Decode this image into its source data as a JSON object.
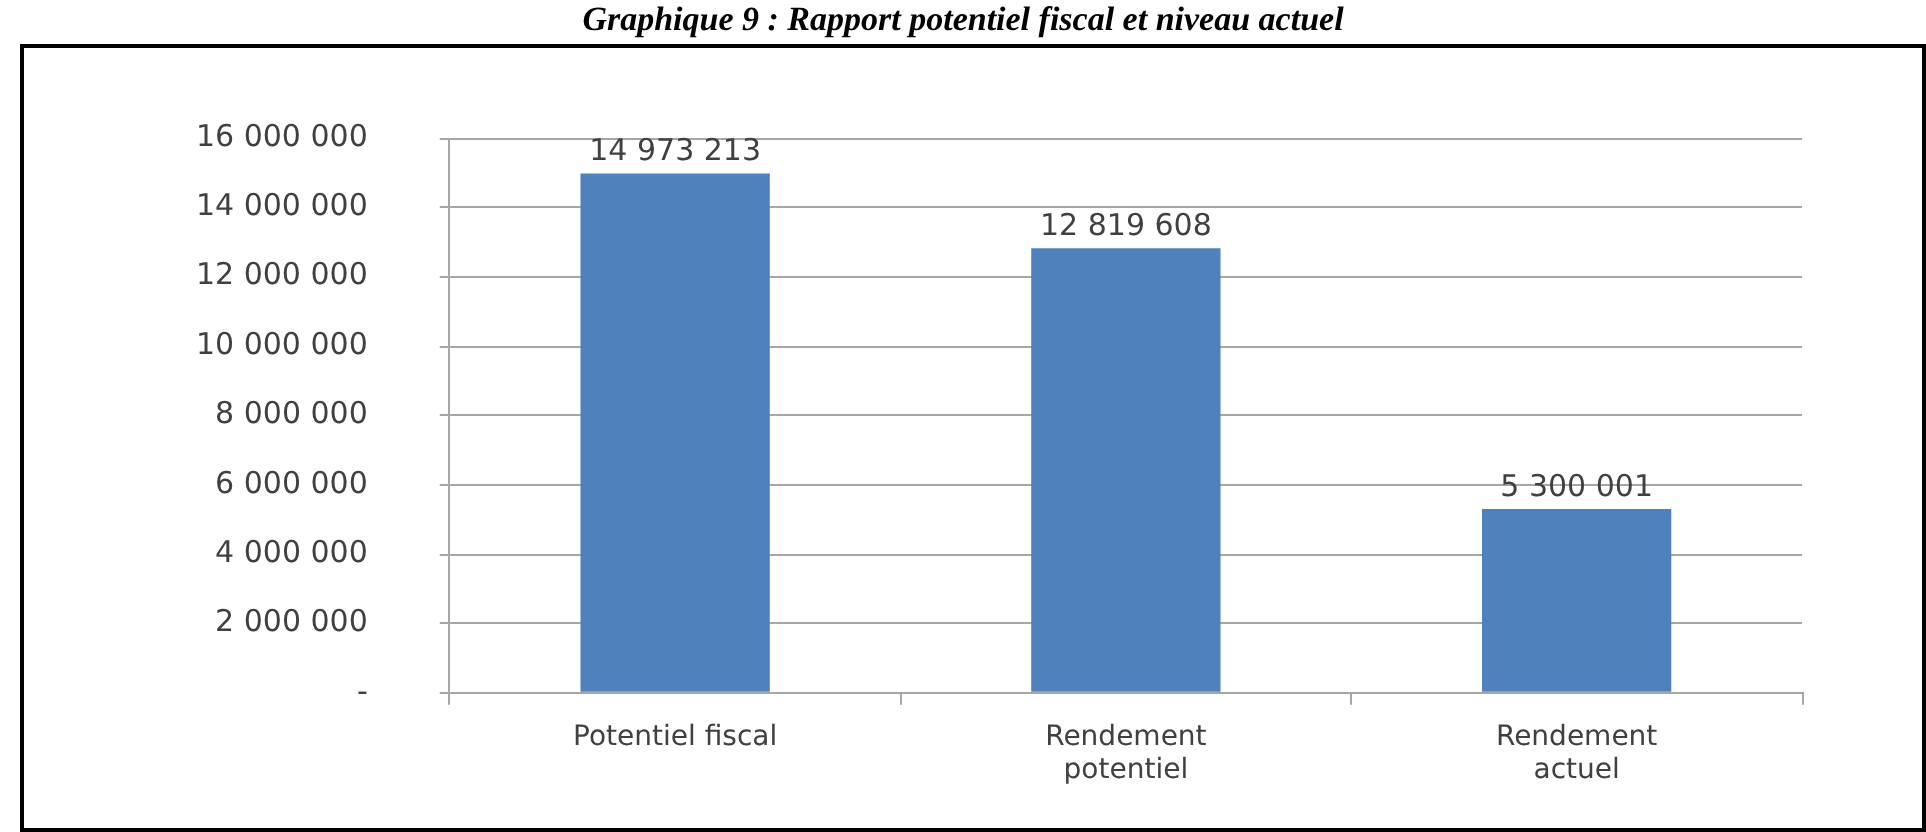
{
  "chart_data": {
    "type": "bar",
    "title": "Graphique 9 : Rapport potentiel fiscal et niveau actuel",
    "categories": [
      "Potentiel fiscal",
      "Rendement potentiel",
      "Rendement actuel"
    ],
    "values": [
      14973213,
      12819608,
      5300001
    ],
    "value_labels": [
      "14 973 213",
      "12 819 608",
      "5 300 001"
    ],
    "color": "#4f81bd",
    "ylim": [
      0,
      16000000
    ],
    "yticks": [
      {
        "value": 0,
        "label": "-"
      },
      {
        "value": 2000000,
        "label": "2 000 000"
      },
      {
        "value": 4000000,
        "label": "4 000 000"
      },
      {
        "value": 6000000,
        "label": "6 000 000"
      },
      {
        "value": 8000000,
        "label": "8 000 000"
      },
      {
        "value": 10000000,
        "label": "10 000 000"
      },
      {
        "value": 12000000,
        "label": "12 000 000"
      },
      {
        "value": 14000000,
        "label": "14 000 000"
      },
      {
        "value": 16000000,
        "label": "16 000 000"
      }
    ],
    "grid": "y"
  }
}
